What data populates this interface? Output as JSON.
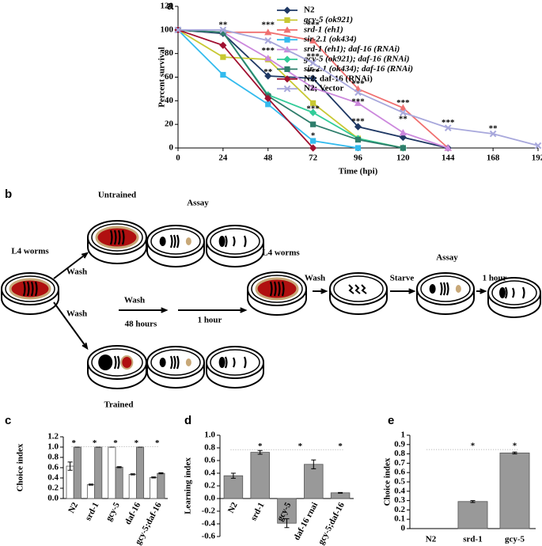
{
  "chart_data": [
    {
      "type": "line",
      "panel": "a",
      "x_label": "Time (hpi)",
      "y_label": "Percent survival",
      "x": [
        0,
        24,
        48,
        72,
        96,
        120,
        144,
        168,
        192
      ],
      "xlim": [
        0,
        192
      ],
      "xticks": [
        0,
        24,
        48,
        72,
        96,
        120,
        144,
        168,
        192
      ],
      "ylim": [
        0,
        120
      ],
      "yticks": [
        0,
        20,
        40,
        60,
        80,
        100,
        120
      ],
      "series": [
        {
          "name": "N2",
          "color": "#1f3864",
          "marker": "diamond",
          "values": [
            100,
            97,
            61,
            59,
            18,
            9,
            0,
            null,
            null
          ]
        },
        {
          "name": "gcy-5 (ok921)",
          "color": "#c8c832",
          "marker": "square",
          "values": [
            100,
            77,
            75,
            38,
            8,
            0,
            null,
            null,
            null
          ]
        },
        {
          "name": "srd-1 (eh1)",
          "color": "#f07070",
          "marker": "triangle",
          "values": [
            100,
            98,
            98,
            91,
            50,
            34,
            0,
            null,
            null
          ]
        },
        {
          "name": "sir-2.1 (ok434)",
          "color": "#33bbee",
          "marker": "square",
          "values": [
            100,
            62,
            37,
            6,
            0,
            null,
            null,
            null,
            null
          ]
        },
        {
          "name": "srd-1 (eh1); daf-16 (RNAi)",
          "color": "#cc88dd",
          "marker": "triangle",
          "values": [
            100,
            98,
            76,
            51,
            38,
            13,
            0,
            null,
            null
          ]
        },
        {
          "name": "gcy-5 (ok921); daf-16 (RNAi)",
          "color": "#33cc99",
          "marker": "diamond",
          "values": [
            100,
            98,
            45,
            30,
            8,
            0,
            null,
            null,
            null
          ]
        },
        {
          "name": "sir-2.1 (ok434); daf-16 (RNAi)",
          "color": "#2e7d6b",
          "marker": "square",
          "values": [
            100,
            98,
            44,
            20,
            7,
            0,
            null,
            null,
            null
          ]
        },
        {
          "name": "N2; daf-16 (RNAi)",
          "color": "#a01030",
          "marker": "diamond",
          "values": [
            100,
            87,
            42,
            0,
            null,
            null,
            null,
            null,
            null
          ]
        },
        {
          "name": "N2; Vector",
          "color": "#a8a8dc",
          "marker": "x",
          "values": [
            100,
            100,
            91,
            72,
            47,
            30,
            17,
            12,
            2
          ]
        }
      ],
      "annotations": [
        {
          "text": "**",
          "x": 24,
          "y": 104
        },
        {
          "text": "***",
          "x": 48,
          "y": 104
        },
        {
          "text": "***",
          "x": 72,
          "y": 104
        },
        {
          "text": "***",
          "x": 48,
          "y": 82
        },
        {
          "text": "***",
          "x": 72,
          "y": 77
        },
        {
          "text": "**",
          "x": 48,
          "y": 64
        },
        {
          "text": "***",
          "x": 72,
          "y": 64
        },
        {
          "text": "***",
          "x": 72,
          "y": 33
        },
        {
          "text": "*",
          "x": 72,
          "y": 10
        },
        {
          "text": "***",
          "x": 96,
          "y": 54
        },
        {
          "text": "***",
          "x": 96,
          "y": 39
        },
        {
          "text": "***",
          "x": 96,
          "y": 22
        },
        {
          "text": "***",
          "x": 120,
          "y": 38
        },
        {
          "text": "**",
          "x": 120,
          "y": 24
        },
        {
          "text": "***",
          "x": 144,
          "y": 21
        },
        {
          "text": "**",
          "x": 168,
          "y": 16
        }
      ]
    },
    {
      "type": "bar",
      "panel": "c",
      "y_label": "Choice index",
      "categories": [
        "N2",
        "srd-1",
        "gcy-5",
        "daf-16",
        "gcy-5;daf-16"
      ],
      "ylim": [
        0,
        1.2
      ],
      "yticks": [
        {
          "value": 0,
          "label": "0.0"
        },
        0.2,
        0.4,
        0.6,
        0.8,
        {
          "value": 1,
          "label": "1.0"
        },
        1.2
      ],
      "series": [
        {
          "color": "#ffffff",
          "values": [
            0.63,
            0.27,
            1.0,
            0.47,
            0.41
          ],
          "errors": [
            0.08,
            0.01,
            0.0,
            0.01,
            0.01
          ]
        },
        {
          "color": "#999999",
          "values": [
            1.0,
            1.0,
            0.61,
            1.0,
            0.49
          ],
          "errors": [
            0.0,
            0.0,
            0.01,
            0.0,
            0.01
          ]
        }
      ],
      "annotations": [
        {
          "text": "*",
          "x": 0,
          "y": 1.07
        },
        {
          "text": "*",
          "x": 1,
          "y": 1.07
        },
        {
          "text": "*",
          "x": 2,
          "y": 1.07
        },
        {
          "text": "*",
          "x": 3,
          "y": 1.07
        },
        {
          "text": "*",
          "x": 4,
          "y": 1.07
        }
      ]
    },
    {
      "type": "bar",
      "panel": "d",
      "y_label": "Learning index",
      "categories": [
        "N2",
        "srd-1",
        "gcy-5",
        "daf-16 rnai",
        "gcy-5;daf-16"
      ],
      "ylim": [
        -0.6,
        1.0
      ],
      "yticks": [
        -0.6,
        -0.4,
        -0.2,
        {
          "value": 0,
          "label": "0.0"
        },
        0.2,
        0.4,
        0.6,
        0.8,
        {
          "value": 1,
          "label": "1.0"
        }
      ],
      "series": [
        {
          "color": "#999999",
          "values": [
            0.36,
            0.73,
            -0.39,
            0.54,
            0.09
          ],
          "errors": [
            0.04,
            0.03,
            0.07,
            0.07,
            0.005
          ]
        }
      ],
      "annotations": [
        {
          "text": "*",
          "x": 1,
          "y": 0.82
        },
        {
          "text": "*",
          "x": 2.5,
          "y": 0.82
        },
        {
          "text": "*",
          "x": 4,
          "y": 0.82
        }
      ]
    },
    {
      "type": "bar",
      "panel": "e",
      "y_label": "Choice index",
      "categories": [
        "N2",
        "srd-1",
        "gcy-5"
      ],
      "ylim": [
        0,
        1
      ],
      "yticks": [
        0,
        0.1,
        0.2,
        0.3,
        0.4,
        0.5,
        0.6,
        0.7,
        0.8,
        0.9,
        1
      ],
      "series": [
        {
          "color": "#999999",
          "values": [
            0,
            0.29,
            0.81
          ],
          "errors": [
            0,
            0.01,
            0.01
          ]
        }
      ],
      "annotations": [
        {
          "text": "*",
          "x": 1,
          "y": 0.88
        },
        {
          "text": "*",
          "x": 2,
          "y": 0.88
        }
      ]
    }
  ],
  "diagram": {
    "panel": "b",
    "labels": [
      "Untrained",
      "Assay",
      "L4 worms",
      "Wash",
      "Wash",
      "Wash",
      "48 hours",
      "1 hour",
      "Trained",
      "L4 worms",
      "Wash",
      "Starve",
      "Assay",
      "1 hour"
    ]
  }
}
